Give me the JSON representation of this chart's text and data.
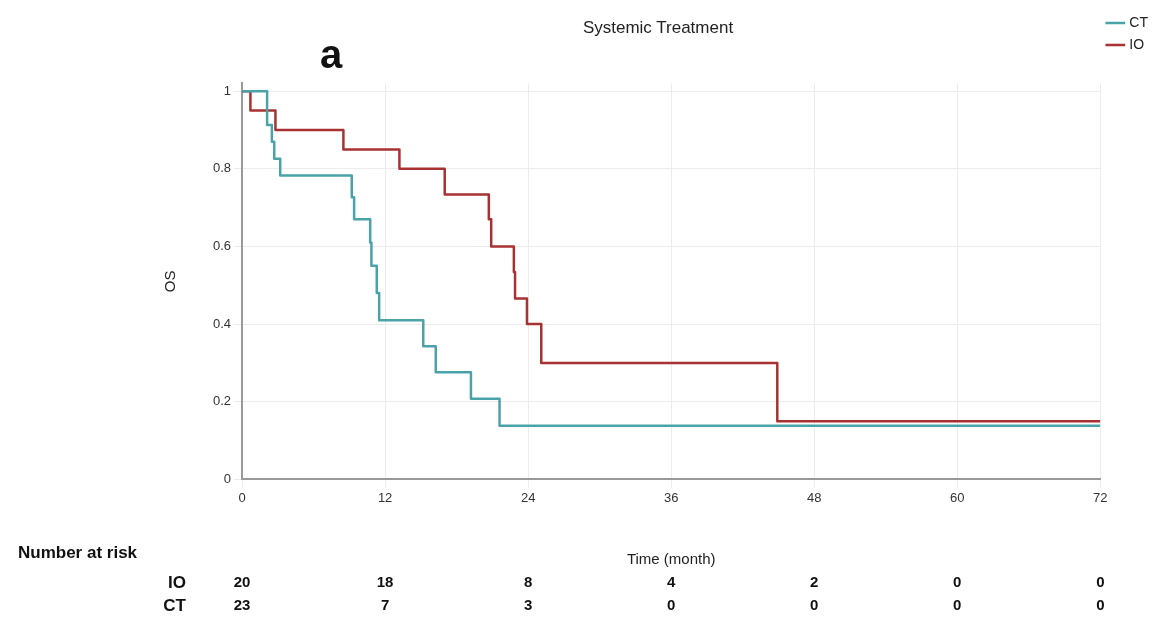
{
  "chart_data": {
    "type": "step",
    "title": "Systemic Treatment",
    "xlabel": "Time (month)",
    "ylabel": "OS",
    "xlim": [
      0,
      72
    ],
    "xticks": [
      0,
      12,
      24,
      36,
      48,
      60,
      72
    ],
    "ylim": [
      0,
      1.02
    ],
    "yticks": [
      0,
      0.2,
      0.4,
      0.6,
      0.8,
      1
    ],
    "grid": true,
    "legend": "top right",
    "series": [
      {
        "name": "CT",
        "color": "#4aa3a8",
        "x": [
          0,
          2.1,
          2.5,
          2.7,
          3.2,
          9.2,
          9.4,
          10.75,
          10.85,
          11.3,
          11.5,
          15.2,
          16.25,
          19.2,
          21.6,
          72
        ],
        "values": [
          1,
          0.913,
          0.87,
          0.826,
          0.783,
          0.727,
          0.67,
          0.61,
          0.55,
          0.48,
          0.41,
          0.343,
          0.276,
          0.208,
          0.138,
          0.138
        ]
      },
      {
        "name": "IO",
        "color": "#a83232",
        "x": [
          0,
          0.7,
          2.8,
          8.5,
          13.2,
          17,
          20.7,
          20.9,
          22.8,
          22.9,
          23.9,
          25.1,
          44.9,
          72
        ],
        "values": [
          1,
          0.95,
          0.9,
          0.85,
          0.8,
          0.734,
          0.67,
          0.6,
          0.534,
          0.466,
          0.4,
          0.3,
          0.15,
          0.15
        ]
      }
    ],
    "annotations": [
      "a",
      "Number at risk",
      "IO",
      "20",
      "18",
      "8",
      "4",
      "2",
      "0",
      "0",
      "CT",
      "23",
      "7",
      "3",
      "0",
      "0",
      "0",
      "0"
    ]
  }
}
